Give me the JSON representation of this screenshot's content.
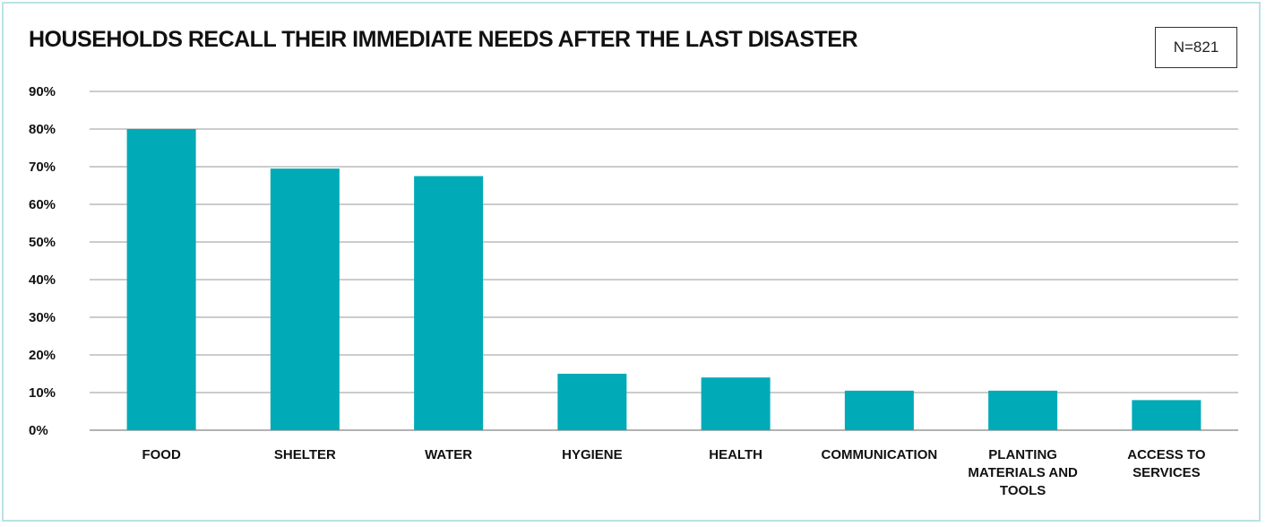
{
  "chart_data": {
    "type": "bar",
    "title": "HOUSEHOLDS RECALL THEIR IMMEDIATE NEEDS AFTER THE LAST DISASTER",
    "sample_size_label": "N=821",
    "categories": [
      [
        "FOOD"
      ],
      [
        "SHELTER"
      ],
      [
        "WATER"
      ],
      [
        "HYGIENE"
      ],
      [
        "HEALTH"
      ],
      [
        "COMMUNICATION"
      ],
      [
        "PLANTING",
        "MATERIALS AND",
        "TOOLS"
      ],
      [
        "ACCESS TO",
        "SERVICES"
      ]
    ],
    "values": [
      80,
      69.5,
      67.5,
      15,
      14,
      10.5,
      10.5,
      8
    ],
    "ylim": [
      0,
      90
    ],
    "yticks": [
      0,
      10,
      20,
      30,
      40,
      50,
      60,
      70,
      80,
      90
    ],
    "ytick_labels": [
      "0%",
      "10%",
      "20%",
      "30%",
      "40%",
      "50%",
      "60%",
      "70%",
      "80%",
      "90%"
    ],
    "xlabel": "",
    "ylabel": "",
    "grid": true,
    "bar_color": "#00aab7",
    "grid_color": "#9a9a9a"
  }
}
